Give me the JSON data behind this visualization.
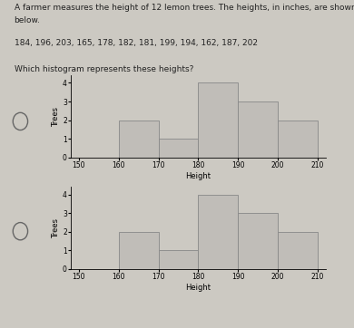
{
  "title_line1": "A farmer measures the height of 12 lemon trees. The heights, in inches, are shown",
  "title_line2": "below.",
  "data_line": "184, 196, 203, 165, 178, 182, 181, 199, 194, 162, 187, 202",
  "question": "Which histogram represents these heights?",
  "hist1": {
    "bins": [
      150,
      160,
      170,
      180,
      190,
      200,
      210
    ],
    "values": [
      0,
      2,
      1,
      4,
      3,
      2
    ],
    "bar_color": "#c0bdb8",
    "edge_color": "#888888",
    "xlabel": "Height",
    "ylabel": "Trees",
    "ylim": [
      0,
      4.4
    ],
    "yticks": [
      0,
      1,
      2,
      3,
      4
    ],
    "xticks": [
      150,
      160,
      170,
      180,
      190,
      200,
      210
    ]
  },
  "hist2": {
    "bins": [
      150,
      160,
      170,
      180,
      190,
      200,
      210
    ],
    "values": [
      0,
      2,
      1,
      4,
      3,
      2
    ],
    "bar_color": "#c0bdb8",
    "edge_color": "#888888",
    "xlabel": "Height",
    "ylabel": "Trees",
    "ylim": [
      0,
      4.4
    ],
    "yticks": [
      0,
      1,
      2,
      3,
      4
    ],
    "xticks": [
      150,
      160,
      170,
      180,
      190,
      200,
      210
    ]
  },
  "bg_color": "#ccc9c2",
  "fig_width": 3.9,
  "fig_height": 3.62,
  "dpi": 100
}
